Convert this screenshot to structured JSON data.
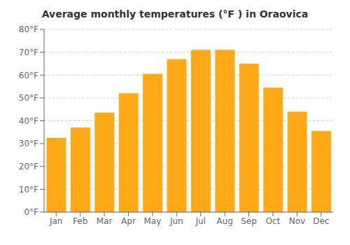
{
  "chart_data": {
    "type": "bar",
    "title": "Average monthly temperatures (°F ) in Oraovica",
    "categories": [
      "Jan",
      "Feb",
      "Mar",
      "Apr",
      "May",
      "Jun",
      "Jul",
      "Aug",
      "Sep",
      "Oct",
      "Nov",
      "Dec"
    ],
    "values": [
      32.5,
      37.0,
      43.5,
      52.0,
      60.5,
      67.0,
      71.0,
      71.0,
      65.0,
      54.5,
      44.0,
      35.5
    ],
    "color": "#FFA818",
    "ylim": [
      0,
      80
    ],
    "yticks": [
      {
        "value": 0,
        "label": "0°F"
      },
      {
        "value": 10,
        "label": "10°F"
      },
      {
        "value": 20,
        "label": "20°F"
      },
      {
        "value": 30,
        "label": "30°F"
      },
      {
        "value": 40,
        "label": "40°F"
      },
      {
        "value": 50,
        "label": "50°F"
      },
      {
        "value": 60,
        "label": "60°F"
      },
      {
        "value": 70,
        "label": "70°F"
      },
      {
        "value": 80,
        "label": "80°F"
      }
    ],
    "grid": true
  }
}
